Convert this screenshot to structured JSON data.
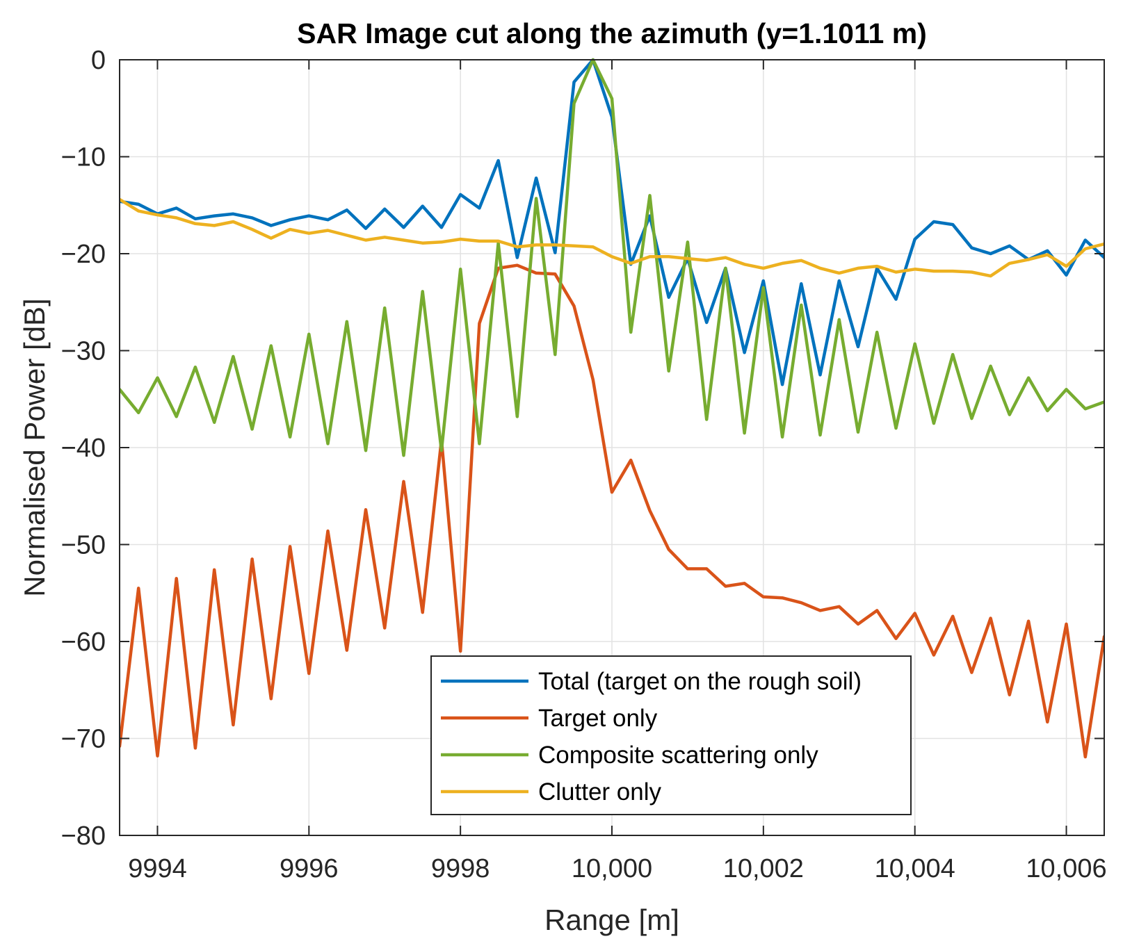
{
  "chart_data": {
    "type": "line",
    "title": "SAR Image cut along the azimuth (y=1.1011 m)",
    "xlabel": "Range [m]",
    "ylabel": "Normalised Power [dB]",
    "xlim": [
      9993.5,
      10006.5
    ],
    "ylim": [
      -80,
      0
    ],
    "grid": true,
    "legend_position": "bottom-center",
    "x_ticks": [
      9994,
      9996,
      9998,
      10000,
      10002,
      10004,
      10006
    ],
    "x_tick_labels": [
      "9994",
      "9996",
      "9998",
      "10,000",
      "10,002",
      "10,004",
      "10,006"
    ],
    "y_ticks": [
      0,
      -10,
      -20,
      -30,
      -40,
      -50,
      -60,
      -70,
      -80
    ],
    "y_tick_labels": [
      "0",
      "−10",
      "−20",
      "−30",
      "−40",
      "−50",
      "−60",
      "−70",
      "−80"
    ],
    "x": [
      9993.5,
      9993.75,
      9994.0,
      9994.25,
      9994.5,
      9994.75,
      9995.0,
      9995.25,
      9995.5,
      9995.75,
      9996.0,
      9996.25,
      9996.5,
      9996.75,
      9997.0,
      9997.25,
      9997.5,
      9997.75,
      9998.0,
      9998.25,
      9998.5,
      9998.75,
      9999.0,
      9999.25,
      9999.5,
      9999.75,
      10000.0,
      10000.25,
      10000.5,
      10000.75,
      10001.0,
      10001.25,
      10001.5,
      10001.75,
      10002.0,
      10002.25,
      10002.5,
      10002.75,
      10003.0,
      10003.25,
      10003.5,
      10003.75,
      10004.0,
      10004.25,
      10004.5,
      10004.75,
      10005.0,
      10005.25,
      10005.5,
      10005.75,
      10006.0,
      10006.25,
      10006.5
    ],
    "series": [
      {
        "name": "Total (target on the rough soil)",
        "color": "#0072bd",
        "values": [
          -14.6,
          -14.9,
          -15.9,
          -15.3,
          -16.4,
          -16.1,
          -15.9,
          -16.3,
          -17.1,
          -16.5,
          -16.1,
          -16.5,
          -15.5,
          -17.4,
          -15.4,
          -17.3,
          -15.1,
          -17.3,
          -13.9,
          -15.3,
          -10.4,
          -20.4,
          -12.2,
          -19.9,
          -2.3,
          0.0,
          -5.9,
          -21.1,
          -16.1,
          -24.5,
          -20.5,
          -27.1,
          -21.5,
          -30.2,
          -22.8,
          -33.5,
          -23.1,
          -32.5,
          -22.8,
          -29.6,
          -21.5,
          -24.7,
          -18.5,
          -16.7,
          -17.0,
          -19.4,
          -20.0,
          -19.2,
          -20.6,
          -19.7,
          -22.2,
          -18.6,
          -20.4
        ]
      },
      {
        "name": "Target only",
        "color": "#d95319",
        "values": [
          -70.8,
          -54.5,
          -71.8,
          -53.5,
          -71.0,
          -52.6,
          -68.6,
          -51.5,
          -65.9,
          -50.2,
          -63.3,
          -48.6,
          -60.9,
          -46.4,
          -58.6,
          -43.5,
          -57.0,
          -39.2,
          -61.0,
          -27.2,
          -21.5,
          -21.2,
          -22.0,
          -22.1,
          -25.4,
          -33.0,
          -44.6,
          -41.3,
          -46.5,
          -50.5,
          -52.5,
          -52.5,
          -54.3,
          -54.0,
          -55.4,
          -55.5,
          -56.0,
          -56.8,
          -56.4,
          -58.2,
          -56.8,
          -59.7,
          -57.1,
          -61.4,
          -57.4,
          -63.2,
          -57.6,
          -65.5,
          -57.9,
          -68.3,
          -58.2,
          -71.9,
          -59.5
        ]
      },
      {
        "name": "Composite scattering only",
        "color": "#77ac30",
        "values": [
          -34.0,
          -36.4,
          -32.8,
          -36.8,
          -31.7,
          -37.4,
          -30.6,
          -38.1,
          -29.5,
          -38.9,
          -28.3,
          -39.6,
          -27.0,
          -40.3,
          -25.6,
          -40.8,
          -23.9,
          -40.3,
          -21.6,
          -39.6,
          -18.9,
          -36.8,
          -14.3,
          -30.4,
          -4.5,
          0.0,
          -4.0,
          -28.1,
          -14.0,
          -32.1,
          -18.8,
          -37.1,
          -21.5,
          -38.5,
          -23.5,
          -38.9,
          -25.3,
          -38.7,
          -26.8,
          -38.4,
          -28.1,
          -38.0,
          -29.3,
          -37.5,
          -30.4,
          -37.0,
          -31.6,
          -36.6,
          -32.8,
          -36.2,
          -34.0,
          -36.0,
          -35.3
        ]
      },
      {
        "name": "Clutter only",
        "color": "#edb120",
        "values": [
          -14.4,
          -15.6,
          -16.0,
          -16.3,
          -16.9,
          -17.1,
          -16.7,
          -17.5,
          -18.4,
          -17.5,
          -17.9,
          -17.6,
          -18.1,
          -18.6,
          -18.3,
          -18.6,
          -18.9,
          -18.8,
          -18.5,
          -18.7,
          -18.7,
          -19.3,
          -19.1,
          -19.1,
          -19.2,
          -19.3,
          -20.3,
          -21.0,
          -20.3,
          -20.3,
          -20.5,
          -20.7,
          -20.4,
          -21.1,
          -21.5,
          -21.0,
          -20.7,
          -21.5,
          -22.0,
          -21.5,
          -21.3,
          -21.9,
          -21.6,
          -21.8,
          -21.8,
          -21.9,
          -22.3,
          -21.0,
          -20.6,
          -20.1,
          -21.3,
          -19.5,
          -19.0
        ]
      }
    ]
  }
}
